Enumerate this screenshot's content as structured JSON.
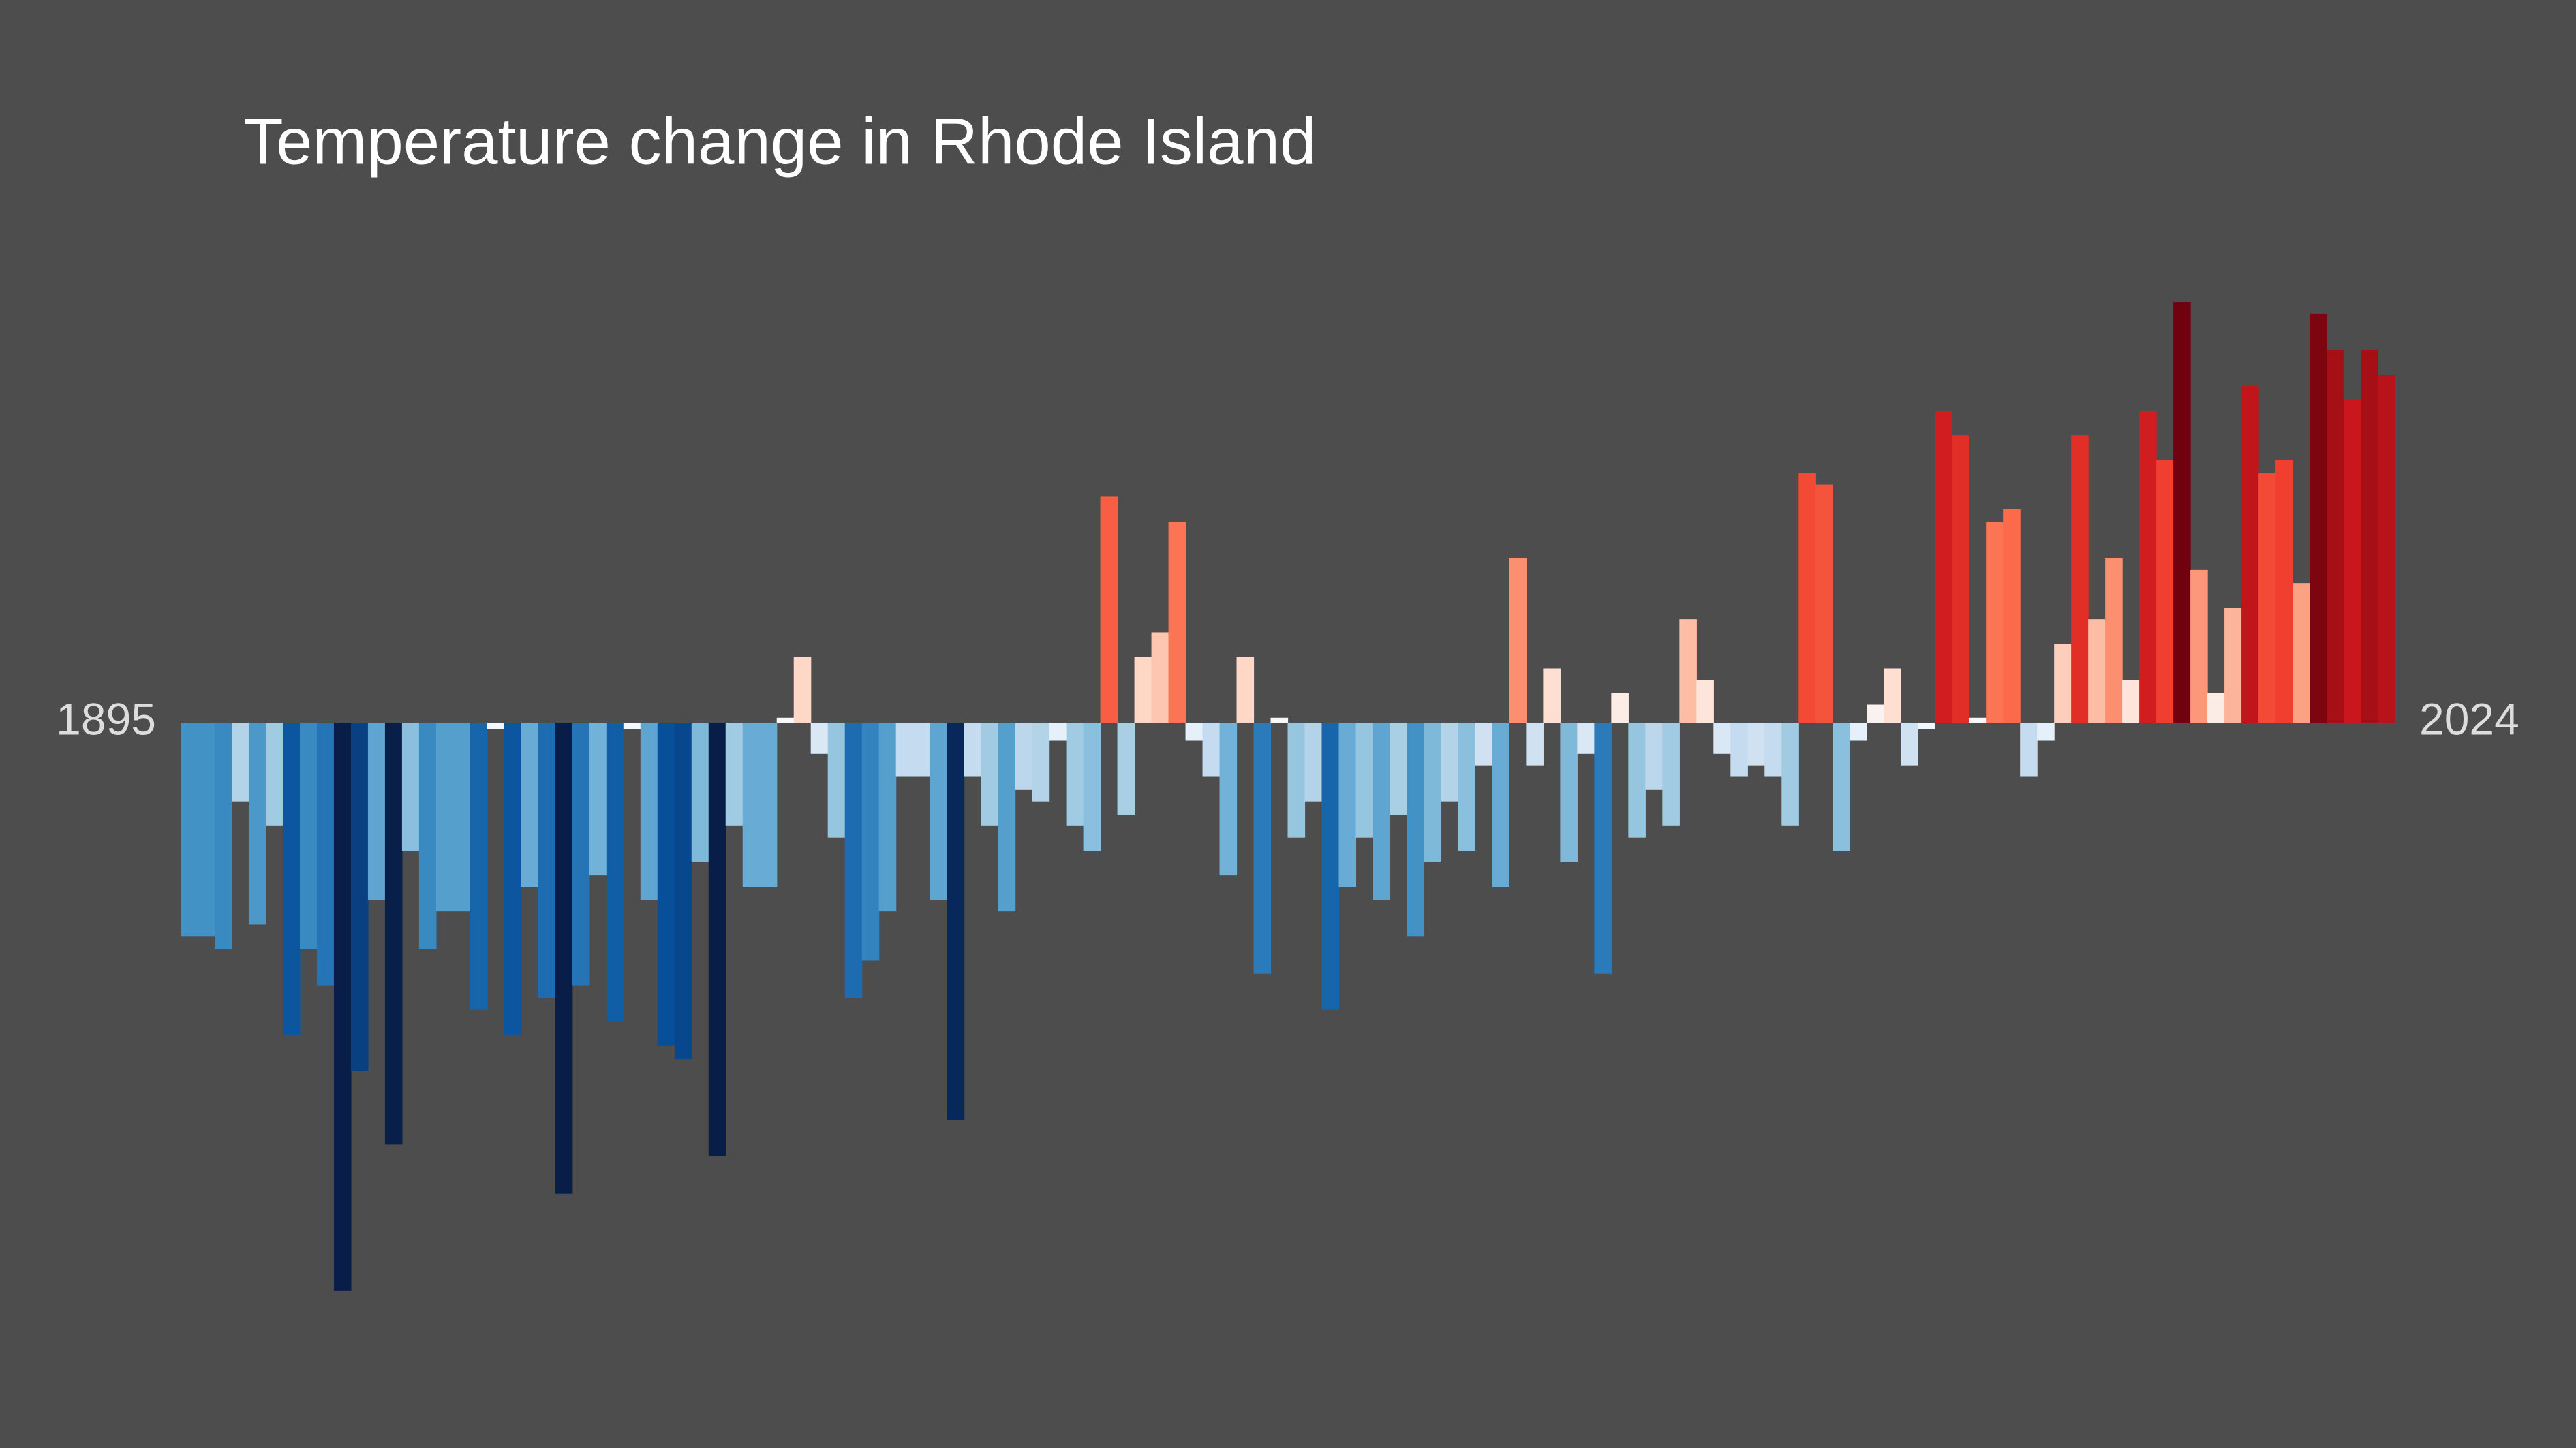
{
  "chart_data": {
    "type": "bar",
    "title": "Temperature change in Rhode Island",
    "categories": [
      "1895",
      null,
      null,
      null,
      null,
      null,
      null,
      null,
      null,
      null,
      null,
      null,
      null,
      null,
      null,
      null,
      null,
      null,
      null,
      null,
      null,
      null,
      null,
      null,
      null,
      null,
      null,
      null,
      null,
      null,
      null,
      null,
      null,
      null,
      null,
      null,
      null,
      null,
      null,
      null,
      null,
      null,
      null,
      null,
      null,
      null,
      null,
      null,
      null,
      null,
      null,
      null,
      null,
      null,
      null,
      null,
      null,
      null,
      null,
      null,
      null,
      null,
      null,
      null,
      null,
      null,
      null,
      null,
      null,
      null,
      null,
      null,
      null,
      null,
      null,
      null,
      null,
      null,
      null,
      null,
      null,
      null,
      null,
      null,
      null,
      null,
      null,
      null,
      null,
      null,
      null,
      null,
      null,
      null,
      null,
      null,
      null,
      null,
      null,
      null,
      null,
      null,
      null,
      null,
      null,
      null,
      null,
      null,
      null,
      null,
      null,
      null,
      null,
      null,
      null,
      null,
      null,
      null,
      null,
      null,
      null,
      null,
      null,
      null,
      null,
      null,
      null,
      null,
      null,
      "2024"
    ],
    "values": [
      -1.3,
      -1.3,
      -1.38,
      -0.48,
      -1.23,
      -0.63,
      -1.9,
      -1.38,
      -1.6,
      -3.46,
      -2.12,
      -1.08,
      -2.57,
      -0.78,
      -1.38,
      -1.15,
      -1.15,
      -1.75,
      -0.04,
      -1.9,
      -1.0,
      -1.68,
      -2.87,
      -1.6,
      -0.93,
      -1.82,
      -0.04,
      -1.08,
      -1.97,
      -2.05,
      -0.85,
      -2.64,
      -0.63,
      -1.0,
      -1.0,
      0.03,
      0.4,
      -0.19,
      -0.7,
      -1.68,
      -1.45,
      -1.15,
      -0.33,
      -0.33,
      -1.08,
      -2.42,
      -0.33,
      -0.63,
      -1.15,
      -0.41,
      -0.48,
      -0.11,
      -0.63,
      -0.78,
      1.38,
      -0.56,
      0.4,
      0.55,
      1.22,
      -0.11,
      -0.33,
      -0.93,
      0.4,
      -1.53,
      0.03,
      -0.7,
      -0.48,
      -1.75,
      -1.0,
      -0.7,
      -1.08,
      -0.56,
      -1.3,
      -0.85,
      -0.48,
      -0.78,
      -0.26,
      -1.0,
      1.0,
      -0.26,
      0.33,
      -0.85,
      -0.19,
      -1.53,
      0.18,
      -0.7,
      -0.41,
      -0.63,
      0.63,
      0.26,
      -0.19,
      -0.33,
      -0.26,
      -0.33,
      -0.63,
      1.52,
      1.45,
      -0.78,
      -0.11,
      0.11,
      0.33,
      -0.26,
      -0.04,
      1.9,
      1.75,
      0.03,
      1.22,
      1.3,
      -0.33,
      -0.11,
      0.48,
      1.75,
      0.63,
      1.0,
      0.26,
      1.9,
      1.6,
      2.56,
      0.93,
      0.18,
      0.7,
      2.05,
      1.52,
      1.6,
      0.85,
      2.49,
      2.27,
      1.97,
      2.27,
      2.12
    ],
    "ylim": [
      -4.0,
      3.0
    ],
    "colormap": [
      "#081d47",
      "#08306b",
      "#08519c",
      "#2171b5",
      "#4292c6",
      "#6baed6",
      "#9ecae1",
      "#c6dbef",
      "#f7fbff",
      "#fee0d2",
      "#fcbba1",
      "#fc9272",
      "#fb6a4a",
      "#ef3b2c",
      "#cb181d",
      "#a50f15",
      "#67000d"
    ],
    "color_limits": [
      -2.6,
      2.6
    ]
  }
}
